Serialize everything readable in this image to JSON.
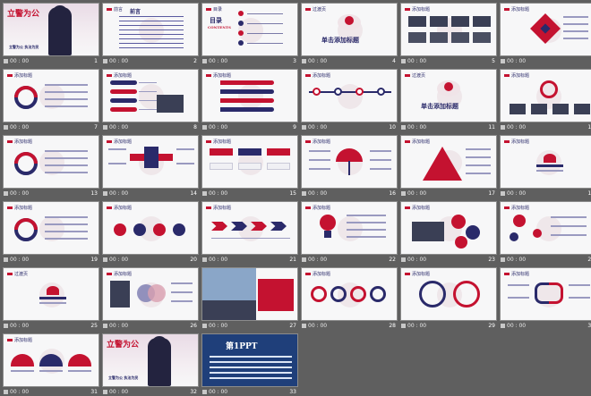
{
  "slides": [
    {
      "number": "1",
      "time": "00 : 00",
      "kind": "cover",
      "title": "立警为公",
      "subtitle": "立警为公 执法为民"
    },
    {
      "number": "2",
      "time": "00 : 00",
      "kind": "text",
      "header": "前言",
      "heading": "前言"
    },
    {
      "number": "3",
      "time": "00 : 00",
      "kind": "toc",
      "header": "目录",
      "heading": "目录",
      "sub": "CONTENTS",
      "items": [
        "1",
        "2",
        "3",
        "4"
      ]
    },
    {
      "number": "4",
      "time": "00 : 00",
      "kind": "section",
      "header": "过渡页",
      "heading": "单击添加标题"
    },
    {
      "number": "5",
      "time": "00 : 00",
      "kind": "photos",
      "header": "添加标题"
    },
    {
      "number": "6",
      "time": "00 : 00",
      "kind": "diamond",
      "header": "添加标题"
    },
    {
      "number": "7",
      "time": "00 : 00",
      "kind": "ring",
      "header": "添加标题"
    },
    {
      "number": "8",
      "time": "00 : 00",
      "kind": "tree",
      "header": "添加标题"
    },
    {
      "number": "9",
      "time": "00 : 00",
      "kind": "curves",
      "header": "添加标题"
    },
    {
      "number": "10",
      "time": "00 : 00",
      "kind": "timeline",
      "header": "添加标题"
    },
    {
      "number": "11",
      "time": "00 : 00",
      "kind": "section",
      "header": "过渡页",
      "heading": "单击添加标题"
    },
    {
      "number": "12",
      "time": "00 : 00",
      "kind": "circles",
      "header": "添加标题"
    },
    {
      "number": "13",
      "time": "00 : 00",
      "kind": "ring",
      "header": "添加标题"
    },
    {
      "number": "14",
      "time": "00 : 00",
      "kind": "arrows",
      "header": "添加标题"
    },
    {
      "number": "15",
      "time": "00 : 00",
      "kind": "boxes",
      "header": "添加标题"
    },
    {
      "number": "16",
      "time": "00 : 00",
      "kind": "umbrella",
      "header": "添加标题"
    },
    {
      "number": "17",
      "time": "00 : 00",
      "kind": "pyramid",
      "header": "添加标题"
    },
    {
      "number": "18",
      "time": "00 : 00",
      "kind": "badge",
      "header": "添加标题"
    },
    {
      "number": "19",
      "time": "00 : 00",
      "kind": "ring",
      "header": "添加标题"
    },
    {
      "number": "20",
      "time": "00 : 00",
      "kind": "dots",
      "header": "添加标题"
    },
    {
      "number": "21",
      "time": "00 : 00",
      "kind": "chevrons",
      "header": "添加标题"
    },
    {
      "number": "22",
      "time": "00 : 00",
      "kind": "bulb",
      "header": "添加标题"
    },
    {
      "number": "23",
      "time": "00 : 00",
      "kind": "gears",
      "header": "添加标题"
    },
    {
      "number": "24",
      "time": "00 : 00",
      "kind": "bubbles",
      "header": "添加标题"
    },
    {
      "number": "25",
      "time": "00 : 00",
      "kind": "badge",
      "header": "过渡页"
    },
    {
      "number": "26",
      "time": "00 : 00",
      "kind": "venn",
      "header": "添加标题"
    },
    {
      "number": "27",
      "time": "00 : 00",
      "kind": "photo",
      "header": ""
    },
    {
      "number": "28",
      "time": "00 : 00",
      "kind": "waves",
      "header": "添加标题"
    },
    {
      "number": "29",
      "time": "00 : 00",
      "kind": "arcs",
      "header": "添加标题"
    },
    {
      "number": "30",
      "time": "00 : 00",
      "kind": "loop",
      "header": "添加标题"
    },
    {
      "number": "31",
      "time": "00 : 00",
      "kind": "semicircles",
      "header": "添加标题"
    },
    {
      "number": "32",
      "time": "00 : 00",
      "kind": "cover",
      "title": "立警为公",
      "subtitle": "立警为公 执法为民"
    },
    {
      "number": "33",
      "time": "00 : 00",
      "kind": "ad",
      "title": "第1PPT"
    }
  ],
  "colors": {
    "red": "#c41230",
    "navy": "#2a2a6a",
    "background": "#5f5f5f"
  }
}
